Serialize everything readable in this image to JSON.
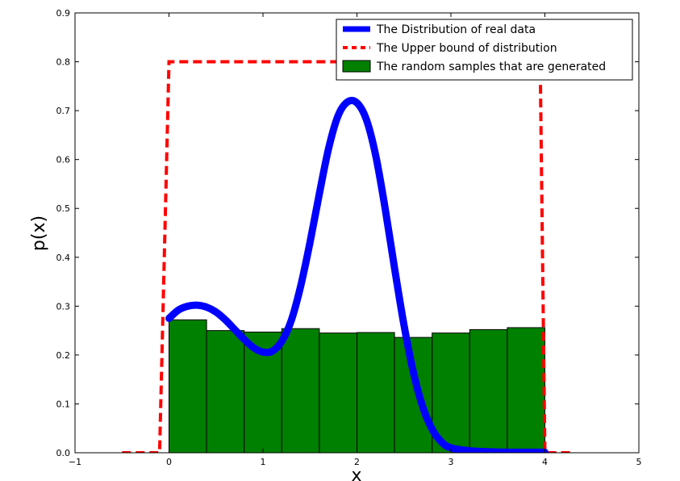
{
  "chart_data": {
    "type": "line",
    "title": "",
    "xlabel": "x",
    "ylabel": "p(x)",
    "xlim": [
      -1,
      5
    ],
    "ylim": [
      0,
      0.9
    ],
    "grid": false,
    "legend_position": "top-right",
    "x_ticks": [
      {
        "value": -1,
        "label": "−1"
      },
      {
        "value": 0,
        "label": "0"
      },
      {
        "value": 1,
        "label": "1"
      },
      {
        "value": 2,
        "label": "2"
      },
      {
        "value": 3,
        "label": "3"
      },
      {
        "value": 4,
        "label": "4"
      },
      {
        "value": 5,
        "label": "5"
      }
    ],
    "y_ticks": [
      {
        "value": 0.0,
        "label": "0.0"
      },
      {
        "value": 0.1,
        "label": "0.1"
      },
      {
        "value": 0.2,
        "label": "0.2"
      },
      {
        "value": 0.3,
        "label": "0.3"
      },
      {
        "value": 0.4,
        "label": "0.4"
      },
      {
        "value": 0.5,
        "label": "0.5"
      },
      {
        "value": 0.6,
        "label": "0.6"
      },
      {
        "value": 0.7,
        "label": "0.7"
      },
      {
        "value": 0.8,
        "label": "0.8"
      },
      {
        "value": 0.9,
        "label": "0.9"
      }
    ],
    "series": [
      {
        "name": "The Distribution of real data",
        "kind": "line",
        "color": "#0000ff",
        "style": "solid",
        "x": [
          0.0,
          0.1,
          0.2,
          0.3,
          0.4,
          0.5,
          0.6,
          0.7,
          0.8,
          0.9,
          1.0,
          1.1,
          1.2,
          1.3,
          1.4,
          1.5,
          1.6,
          1.7,
          1.8,
          1.9,
          2.0,
          2.1,
          2.2,
          2.3,
          2.4,
          2.5,
          2.6,
          2.7,
          2.8,
          2.9,
          3.0,
          3.2,
          3.4,
          3.6,
          3.8,
          4.0
        ],
        "y": [
          0.275,
          0.292,
          0.3,
          0.302,
          0.298,
          0.288,
          0.272,
          0.252,
          0.232,
          0.215,
          0.206,
          0.208,
          0.228,
          0.27,
          0.34,
          0.43,
          0.53,
          0.624,
          0.69,
          0.718,
          0.716,
          0.682,
          0.608,
          0.5,
          0.378,
          0.262,
          0.165,
          0.094,
          0.048,
          0.022,
          0.01,
          0.004,
          0.002,
          0.001,
          0.001,
          0.001
        ]
      },
      {
        "name": "The Upper bound of distribution",
        "kind": "line",
        "color": "#ff0000",
        "style": "dashed",
        "x": [
          -0.5,
          -0.1,
          0.0,
          3.95,
          4.0,
          4.3
        ],
        "y": [
          0.0,
          0.0,
          0.8,
          0.8,
          0.0,
          0.0
        ]
      }
    ],
    "histogram": {
      "name": "The random samples that are generated",
      "color": "#008000",
      "bins": [
        {
          "x0": 0.0,
          "x1": 0.4,
          "value": 0.272
        },
        {
          "x0": 0.4,
          "x1": 0.8,
          "value": 0.25
        },
        {
          "x0": 0.8,
          "x1": 1.2,
          "value": 0.247
        },
        {
          "x0": 1.2,
          "x1": 1.6,
          "value": 0.254
        },
        {
          "x0": 1.6,
          "x1": 2.0,
          "value": 0.245
        },
        {
          "x0": 2.0,
          "x1": 2.4,
          "value": 0.246
        },
        {
          "x0": 2.4,
          "x1": 2.8,
          "value": 0.236
        },
        {
          "x0": 2.8,
          "x1": 3.2,
          "value": 0.245
        },
        {
          "x0": 3.2,
          "x1": 3.6,
          "value": 0.252
        },
        {
          "x0": 3.6,
          "x1": 4.0,
          "value": 0.256
        }
      ]
    },
    "legend": [
      {
        "label": "The Distribution of real data",
        "kind": "line",
        "color": "#0000ff"
      },
      {
        "label": "The Upper bound of distribution",
        "kind": "dashed",
        "color": "#ff0000"
      },
      {
        "label": "The random samples that are generated",
        "kind": "patch",
        "color": "#008000"
      }
    ]
  }
}
